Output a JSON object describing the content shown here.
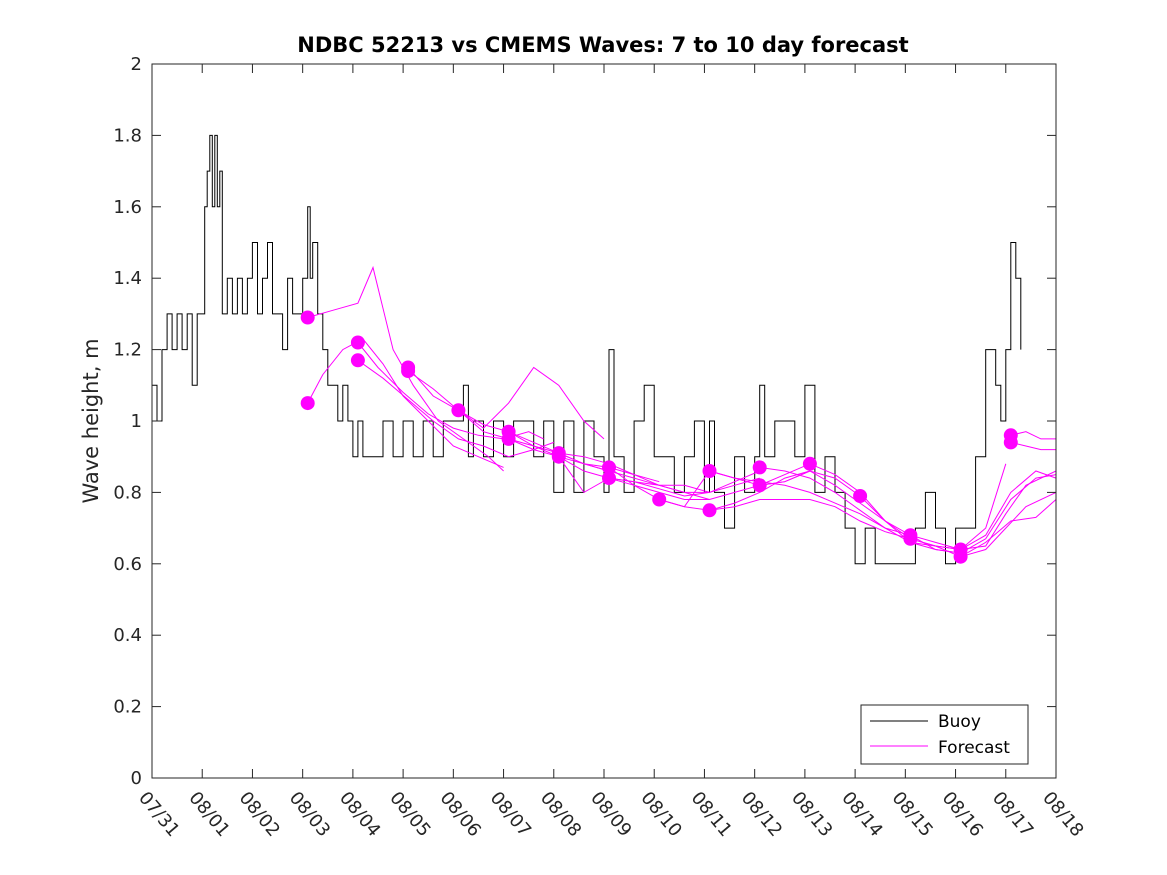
{
  "chart_data": {
    "type": "line",
    "title": "NDBC 52213 vs CMEMS Waves: 7 to 10 day forecast",
    "xlabel": "",
    "ylabel": "Wave height, m",
    "ylim": [
      0,
      2
    ],
    "yticks": [
      "0",
      "0.2",
      "0.4",
      "0.6",
      "0.8",
      "1",
      "1.2",
      "1.4",
      "1.6",
      "1.8",
      "2"
    ],
    "xlim": [
      0,
      18
    ],
    "xticks": [
      "07/31",
      "08/01",
      "08/02",
      "08/03",
      "08/04",
      "08/05",
      "08/06",
      "08/07",
      "08/08",
      "08/09",
      "08/10",
      "08/11",
      "08/12",
      "08/13",
      "08/14",
      "08/15",
      "08/16",
      "08/17",
      "08/18"
    ],
    "colors": {
      "buoy": "#000000",
      "forecast": "#ff00ff"
    },
    "legend": {
      "position": "bottom-right",
      "entries": [
        "Buoy",
        "Forecast"
      ]
    },
    "series": [
      {
        "name": "Buoy",
        "x": [
          0,
          0.1,
          0.2,
          0.3,
          0.4,
          0.5,
          0.6,
          0.7,
          0.8,
          0.9,
          1.0,
          1.05,
          1.1,
          1.15,
          1.2,
          1.25,
          1.3,
          1.35,
          1.4,
          1.5,
          1.6,
          1.7,
          1.8,
          1.9,
          2.0,
          2.1,
          2.2,
          2.3,
          2.4,
          2.5,
          2.6,
          2.7,
          2.8,
          2.9,
          3.0,
          3.1,
          3.15,
          3.2,
          3.3,
          3.4,
          3.5,
          3.6,
          3.7,
          3.8,
          3.9,
          4.0,
          4.1,
          4.2,
          4.4,
          4.6,
          4.8,
          5.0,
          5.2,
          5.4,
          5.6,
          5.8,
          6.0,
          6.1,
          6.2,
          6.3,
          6.4,
          6.6,
          6.8,
          7.0,
          7.2,
          7.4,
          7.6,
          7.8,
          8.0,
          8.2,
          8.4,
          8.6,
          8.8,
          9.0,
          9.1,
          9.2,
          9.4,
          9.6,
          9.8,
          10.0,
          10.2,
          10.4,
          10.6,
          10.8,
          11.0,
          11.1,
          11.2,
          11.4,
          11.6,
          11.8,
          12.0,
          12.1,
          12.2,
          12.4,
          12.6,
          12.8,
          13.0,
          13.2,
          13.4,
          13.6,
          13.8,
          14.0,
          14.2,
          14.4,
          14.6,
          14.8,
          15.0,
          15.2,
          15.4,
          15.6,
          15.8,
          16.0,
          16.2,
          16.4,
          16.6,
          16.8,
          16.9,
          17.0,
          17.1,
          17.2,
          17.3
        ],
        "values": [
          1.1,
          1.0,
          1.2,
          1.3,
          1.2,
          1.3,
          1.2,
          1.3,
          1.1,
          1.3,
          1.3,
          1.6,
          1.7,
          1.8,
          1.6,
          1.8,
          1.6,
          1.7,
          1.3,
          1.4,
          1.3,
          1.4,
          1.3,
          1.4,
          1.5,
          1.3,
          1.4,
          1.5,
          1.3,
          1.3,
          1.2,
          1.4,
          1.3,
          1.3,
          1.4,
          1.6,
          1.4,
          1.5,
          1.3,
          1.2,
          1.1,
          1.1,
          1.0,
          1.1,
          1.0,
          0.9,
          1.0,
          0.9,
          0.9,
          1.0,
          0.9,
          1.0,
          0.9,
          1.0,
          0.9,
          1.0,
          1.0,
          1.0,
          1.1,
          0.9,
          1.0,
          0.9,
          1.0,
          0.9,
          1.0,
          1.0,
          0.9,
          1.0,
          0.8,
          1.0,
          0.8,
          1.0,
          0.9,
          0.8,
          1.2,
          0.9,
          0.8,
          1.0,
          1.1,
          0.9,
          0.9,
          0.8,
          0.9,
          1.0,
          0.8,
          1.0,
          0.8,
          0.7,
          0.9,
          0.8,
          0.9,
          1.1,
          0.9,
          1.0,
          1.0,
          0.9,
          1.1,
          0.8,
          0.9,
          0.8,
          0.7,
          0.6,
          0.7,
          0.6,
          0.6,
          0.6,
          0.6,
          0.7,
          0.8,
          0.7,
          0.6,
          0.7,
          0.7,
          0.9,
          1.2,
          1.1,
          1.0,
          1.2,
          1.5,
          1.4,
          1.2
        ]
      },
      {
        "name": "Forecast",
        "runs": [
          {
            "x": [
              3.1,
              3.4,
              3.8,
              4.2,
              4.6,
              5.0,
              5.5,
              6.0,
              6.5,
              7.0
            ],
            "values": [
              1.05,
              1.13,
              1.2,
              1.23,
              1.16,
              1.07,
              1.0,
              0.93,
              0.9,
              0.87
            ]
          },
          {
            "x": [
              3.1,
              3.6,
              4.1,
              4.4,
              4.8,
              5.2,
              5.7,
              6.2,
              6.7,
              7.0
            ],
            "values": [
              1.29,
              1.31,
              1.33,
              1.43,
              1.2,
              1.1,
              1.0,
              0.95,
              0.9,
              0.86
            ]
          },
          {
            "x": [
              4.1,
              4.5,
              5.0,
              5.5,
              6.0,
              6.5,
              7.0,
              7.5,
              7.8
            ],
            "values": [
              1.22,
              1.15,
              1.08,
              1.02,
              0.98,
              0.96,
              0.95,
              0.97,
              0.95
            ]
          },
          {
            "x": [
              4.1,
              4.6,
              5.1,
              5.6,
              6.1,
              6.6,
              7.1,
              7.6,
              8.0
            ],
            "values": [
              1.17,
              1.12,
              1.06,
              1.0,
              0.95,
              0.93,
              0.9,
              0.92,
              0.94
            ]
          },
          {
            "x": [
              5.1,
              5.6,
              6.1,
              6.6,
              7.1,
              7.6,
              8.1,
              8.6,
              9.0
            ],
            "values": [
              1.15,
              1.07,
              1.03,
              0.98,
              1.05,
              1.15,
              1.1,
              1.0,
              0.95
            ]
          },
          {
            "x": [
              5.1,
              5.6,
              6.1,
              6.6,
              7.1,
              7.6,
              8.1,
              8.6,
              9.1
            ],
            "values": [
              1.14,
              1.09,
              1.03,
              0.97,
              0.95,
              0.92,
              0.9,
              0.88,
              0.86
            ]
          },
          {
            "x": [
              6.1,
              6.6,
              7.1,
              7.6,
              8.1,
              8.6,
              9.1,
              9.6,
              10.1
            ],
            "values": [
              1.03,
              0.99,
              0.97,
              0.93,
              0.91,
              0.9,
              0.88,
              0.85,
              0.83
            ]
          },
          {
            "x": [
              7.1,
              7.6,
              8.1,
              8.6,
              9.1,
              9.6,
              10.1,
              10.6,
              11.1
            ],
            "values": [
              0.97,
              0.94,
              0.91,
              0.88,
              0.86,
              0.84,
              0.82,
              0.8,
              0.78
            ]
          },
          {
            "x": [
              7.1,
              7.6,
              8.1,
              8.6,
              9.1,
              9.6,
              10.1,
              10.6,
              11.1
            ],
            "values": [
              0.95,
              0.93,
              0.9,
              0.86,
              0.84,
              0.83,
              0.82,
              0.82,
              0.8
            ]
          },
          {
            "x": [
              8.1,
              8.6,
              9.1,
              9.6,
              10.1,
              10.6,
              11.1,
              11.6,
              12.1
            ],
            "values": [
              0.91,
              0.88,
              0.87,
              0.85,
              0.82,
              0.8,
              0.8,
              0.82,
              0.84
            ]
          },
          {
            "x": [
              8.1,
              8.6,
              9.1,
              9.6,
              10.1,
              10.6,
              11.1,
              11.6,
              12.1
            ],
            "values": [
              0.9,
              0.8,
              0.84,
              0.83,
              0.81,
              0.79,
              0.8,
              0.83,
              0.86
            ]
          },
          {
            "x": [
              9.1,
              9.6,
              10.1,
              10.6,
              11.1,
              11.6,
              12.1,
              12.6,
              13.1
            ],
            "values": [
              0.87,
              0.82,
              0.8,
              0.78,
              0.78,
              0.8,
              0.82,
              0.85,
              0.88
            ]
          },
          {
            "x": [
              9.1,
              9.6,
              10.1,
              10.6,
              11.1,
              11.6,
              12.1,
              12.6,
              13.1
            ],
            "values": [
              0.84,
              0.82,
              0.78,
              0.76,
              0.75,
              0.77,
              0.8,
              0.84,
              0.86
            ]
          },
          {
            "x": [
              10.1,
              10.6,
              11.1,
              11.6,
              12.1,
              12.6,
              13.1,
              13.6,
              14.1
            ],
            "values": [
              0.78,
              0.76,
              0.86,
              0.84,
              0.82,
              0.83,
              0.86,
              0.84,
              0.79
            ]
          },
          {
            "x": [
              11.1,
              11.6,
              12.1,
              12.6,
              13.1,
              13.6,
              14.1,
              14.6,
              15.1
            ],
            "values": [
              0.86,
              0.84,
              0.83,
              0.82,
              0.8,
              0.77,
              0.74,
              0.7,
              0.68
            ]
          },
          {
            "x": [
              11.1,
              11.6,
              12.1,
              12.6,
              13.1,
              13.6,
              14.1,
              14.6,
              15.1
            ],
            "values": [
              0.75,
              0.76,
              0.78,
              0.78,
              0.78,
              0.76,
              0.72,
              0.69,
              0.67
            ]
          },
          {
            "x": [
              12.1,
              12.6,
              13.1,
              13.6,
              14.1,
              14.6,
              15.1,
              15.6,
              16.1
            ],
            "values": [
              0.87,
              0.86,
              0.84,
              0.8,
              0.75,
              0.7,
              0.66,
              0.64,
              0.63
            ]
          },
          {
            "x": [
              12.1,
              12.6,
              13.1,
              13.6,
              14.1,
              14.6,
              15.1,
              15.6,
              16.1
            ],
            "values": [
              0.82,
              0.83,
              0.86,
              0.82,
              0.77,
              0.72,
              0.68,
              0.66,
              0.64
            ]
          },
          {
            "x": [
              13.1,
              13.6,
              14.1,
              14.6,
              15.1,
              15.6,
              16.1,
              16.6,
              17.0
            ],
            "values": [
              0.88,
              0.85,
              0.8,
              0.72,
              0.67,
              0.65,
              0.64,
              0.7,
              0.88
            ]
          },
          {
            "x": [
              14.1,
              14.6,
              15.1,
              15.6,
              16.1,
              16.6,
              17.1,
              17.6,
              18.0
            ],
            "values": [
              0.79,
              0.72,
              0.66,
              0.65,
              0.64,
              0.68,
              0.8,
              0.86,
              0.84
            ]
          },
          {
            "x": [
              15.1,
              15.6,
              16.1,
              16.6,
              17.1,
              17.6,
              18.0
            ],
            "values": [
              0.68,
              0.64,
              0.63,
              0.67,
              0.78,
              0.84,
              0.85
            ]
          },
          {
            "x": [
              15.1,
              15.6,
              16.1,
              16.6,
              17.1,
              17.6,
              18.0
            ],
            "values": [
              0.67,
              0.65,
              0.62,
              0.66,
              0.72,
              0.73,
              0.78
            ]
          },
          {
            "x": [
              16.1,
              16.6,
              17.0,
              17.4,
              18.0
            ],
            "values": [
              0.64,
              0.65,
              0.74,
              0.82,
              0.86
            ]
          },
          {
            "x": [
              16.1,
              16.6,
              17.0,
              17.4,
              18.0
            ],
            "values": [
              0.62,
              0.64,
              0.7,
              0.76,
              0.8
            ]
          },
          {
            "x": [
              17.1,
              17.4,
              17.7,
              18.0
            ],
            "values": [
              0.96,
              0.97,
              0.95,
              0.95
            ]
          },
          {
            "x": [
              17.1,
              17.4,
              17.7,
              18.0
            ],
            "values": [
              0.94,
              0.93,
              0.92,
              0.92
            ]
          }
        ],
        "start_points": {
          "x": [
            3.1,
            3.1,
            4.1,
            4.1,
            5.1,
            5.1,
            6.1,
            7.1,
            7.1,
            8.1,
            8.1,
            9.1,
            9.1,
            10.1,
            11.1,
            11.1,
            12.1,
            12.1,
            13.1,
            14.1,
            15.1,
            15.1,
            16.1,
            16.1,
            17.1,
            17.1
          ],
          "values": [
            1.29,
            1.05,
            1.22,
            1.17,
            1.15,
            1.14,
            1.03,
            0.97,
            0.95,
            0.91,
            0.9,
            0.87,
            0.84,
            0.78,
            0.86,
            0.75,
            0.87,
            0.82,
            0.88,
            0.79,
            0.68,
            0.67,
            0.64,
            0.62,
            0.96,
            0.94
          ]
        }
      }
    ]
  }
}
